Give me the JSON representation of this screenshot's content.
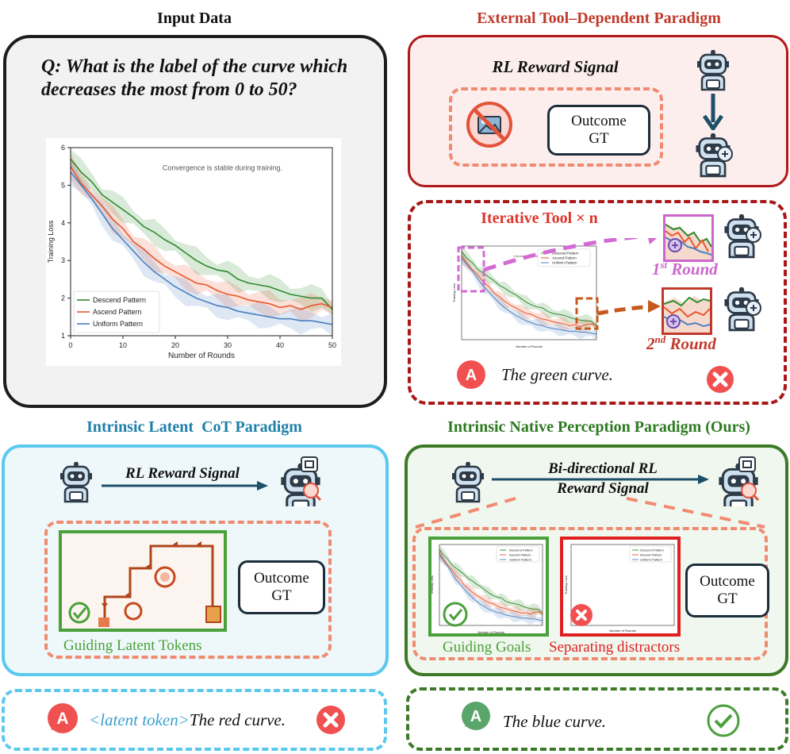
{
  "input": {
    "header": "Input Data",
    "question": "Q: What is the label of the curve which decreases the most from 0 to 50?",
    "chart_annotation": "Convergence is stable during training."
  },
  "external": {
    "header": "External Tool–Dependent Paradigm",
    "reward_label": "RL Reward Signal",
    "outcome_gt": "Outcome GT",
    "iter_title": "Iterative Tool × n",
    "round1": "1",
    "round1_sup": "st",
    "round1_word": " Round",
    "round2": "2",
    "round2_sup": "nd",
    "round2_word": " Round",
    "answer_badge": "A",
    "answer_text": "The green curve."
  },
  "latent": {
    "header": "Intrinsic Latent  CoT Paradigm",
    "reward_label": "RL Reward Signal",
    "outcome_gt": "Outcome GT",
    "guiding_label": "Guiding Latent Tokens",
    "answer_badge": "A",
    "answer_prefix": "<latent token>",
    "answer_text": "The red curve."
  },
  "native": {
    "header": "Intrinsic Native Perception Paradigm (Ours)",
    "reward_label_line1": "Bi-directional RL",
    "reward_label_line2": "Reward Signal",
    "outcome_gt": "Outcome GT",
    "guiding_label": "Guiding Goals",
    "separating_label": "Separating distractors",
    "answer_badge": "A",
    "answer_text": "The blue curve."
  },
  "chart_data": {
    "type": "line",
    "title": "",
    "annotation": "Convergence is stable during training.",
    "xlabel": "Number of Rounds",
    "ylabel": "Training Loss",
    "xlim": [
      0,
      50
    ],
    "ylim": [
      1,
      6
    ],
    "xticks": [
      0,
      10,
      20,
      30,
      40,
      50
    ],
    "yticks": [
      1,
      2,
      3,
      4,
      5,
      6
    ],
    "legend_position": "lower-left",
    "x": [
      0,
      2,
      4,
      6,
      8,
      10,
      12,
      14,
      16,
      18,
      20,
      22,
      24,
      26,
      28,
      30,
      32,
      34,
      36,
      38,
      40,
      42,
      44,
      46,
      48,
      50
    ],
    "series": [
      {
        "name": "Descend Pattern",
        "color": "#2e8b2e",
        "values": [
          5.7,
          5.35,
          5.1,
          4.75,
          4.55,
          4.35,
          4.15,
          3.9,
          3.75,
          3.55,
          3.4,
          3.2,
          3.0,
          2.85,
          2.75,
          2.7,
          2.5,
          2.4,
          2.35,
          2.3,
          2.2,
          2.1,
          2.05,
          2.0,
          2.0,
          1.7
        ]
      },
      {
        "name": "Ascend Pattern",
        "color": "#e8562a",
        "values": [
          5.5,
          5.05,
          4.75,
          4.45,
          4.1,
          3.85,
          3.5,
          3.3,
          3.05,
          2.85,
          2.7,
          2.55,
          2.4,
          2.35,
          2.2,
          2.1,
          2.05,
          1.95,
          1.9,
          1.85,
          1.75,
          1.8,
          1.7,
          1.8,
          1.85,
          1.75
        ]
      },
      {
        "name": "Uniform Pattern",
        "color": "#4a7fc0",
        "values": [
          5.35,
          5.0,
          4.65,
          4.25,
          3.85,
          3.55,
          3.25,
          2.95,
          2.7,
          2.5,
          2.3,
          2.15,
          2.0,
          1.9,
          1.8,
          1.75,
          1.65,
          1.6,
          1.55,
          1.5,
          1.45,
          1.45,
          1.4,
          1.4,
          1.35,
          1.3
        ]
      }
    ]
  }
}
